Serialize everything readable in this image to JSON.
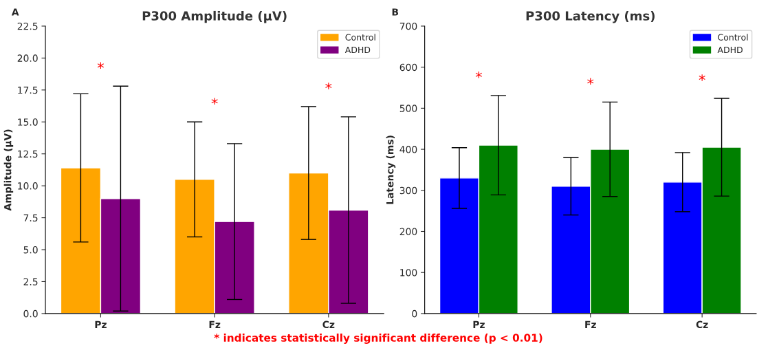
{
  "chart_data": [
    {
      "type": "bar",
      "title": "P300 Amplitude (μV)",
      "ylabel": "Amplitude (μV)",
      "categories": [
        "Pz",
        "Fz",
        "Cz"
      ],
      "series": [
        {
          "name": "Control",
          "color": "#ffa500",
          "values": [
            11.4,
            10.5,
            11.0
          ],
          "errors": [
            5.8,
            4.5,
            5.2
          ]
        },
        {
          "name": "ADHD",
          "color": "#800080",
          "values": [
            9.0,
            7.2,
            8.1
          ],
          "errors": [
            8.8,
            6.1,
            7.3
          ]
        }
      ],
      "ylim": [
        0,
        22.5
      ],
      "yticks": [
        {
          "value": 0,
          "label": "0.0"
        },
        2.5,
        {
          "value": 5,
          "label": "5.0"
        },
        7.5,
        {
          "value": 10,
          "label": "10.0"
        },
        12.5,
        {
          "value": 15,
          "label": "15.0"
        },
        17.5,
        {
          "value": 20,
          "label": "20.0"
        },
        22.5
      ],
      "legend": "top right",
      "grid": false,
      "annotations": [
        "A",
        "*",
        "*",
        "*",
        "* indicates statistically significant difference (p < 0.01)"
      ]
    },
    {
      "type": "bar",
      "title": "P300 Latency (ms)",
      "ylabel": "Latency (ms)",
      "categories": [
        "Pz",
        "Fz",
        "Cz"
      ],
      "series": [
        {
          "name": "Control",
          "color": "#0000ff",
          "values": [
            330,
            310,
            320
          ],
          "errors": [
            74,
            70,
            72
          ]
        },
        {
          "name": "ADHD",
          "color": "#008000",
          "values": [
            410,
            400,
            405
          ],
          "errors": [
            121,
            115,
            119
          ]
        }
      ],
      "ylim": [
        0,
        700
      ],
      "yticks": [
        0,
        100,
        200,
        300,
        400,
        500,
        600,
        700
      ],
      "legend": "top right",
      "grid": false,
      "annotations": [
        "B",
        "*",
        "*",
        "*"
      ]
    }
  ]
}
